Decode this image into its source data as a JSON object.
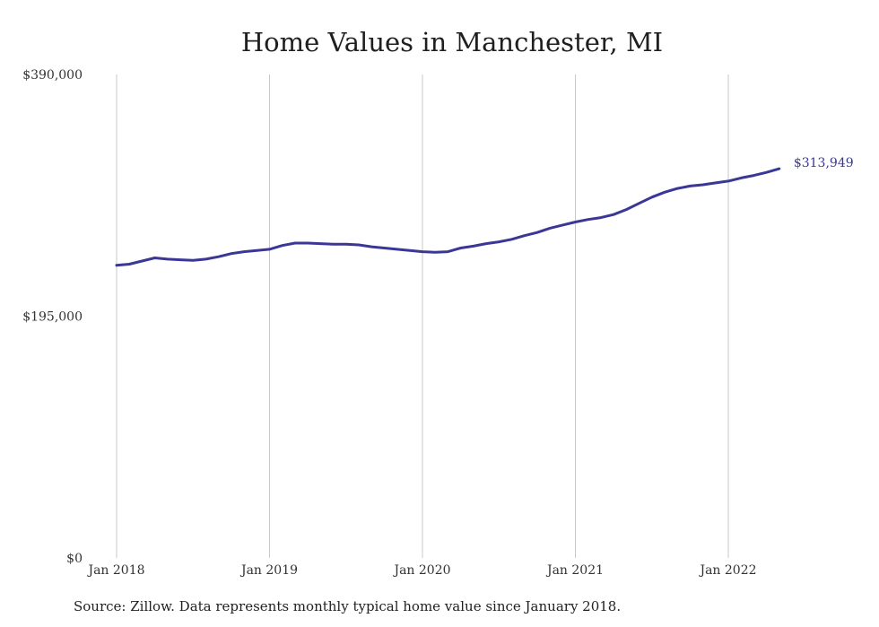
{
  "chart_data": {
    "type": "line",
    "title": "Home Values in Manchester, MI",
    "xlabel": "",
    "ylabel": "",
    "ylim": [
      0,
      390000
    ],
    "y_ticks": [
      0,
      195000,
      390000
    ],
    "y_tick_labels": [
      "$0",
      "$195,000",
      "$390,000"
    ],
    "x_ticks": [
      "Jan 2018",
      "Jan 2019",
      "Jan 2020",
      "Jan 2021",
      "Jan 2022"
    ],
    "grid": "vertical",
    "line_color": "#3a3796",
    "end_label": "$313,949",
    "series": [
      {
        "x": [
          "2018-01",
          "2018-02",
          "2018-03",
          "2018-04",
          "2018-05",
          "2018-06",
          "2018-07",
          "2018-08",
          "2018-09",
          "2018-10",
          "2018-11",
          "2018-12",
          "2019-01",
          "2019-02",
          "2019-03",
          "2019-04",
          "2019-05",
          "2019-06",
          "2019-07",
          "2019-08",
          "2019-09",
          "2019-10",
          "2019-11",
          "2019-12",
          "2020-01",
          "2020-02",
          "2020-03",
          "2020-04",
          "2020-05",
          "2020-06",
          "2020-07",
          "2020-08",
          "2020-09",
          "2020-10",
          "2020-11",
          "2020-12",
          "2021-01",
          "2021-02",
          "2021-03",
          "2021-04",
          "2021-05",
          "2021-06",
          "2021-07",
          "2021-08",
          "2021-09",
          "2021-10",
          "2021-11",
          "2021-12",
          "2022-01",
          "2022-02",
          "2022-03",
          "2022-04",
          "2022-05"
        ],
        "values": [
          236000,
          237000,
          239500,
          242000,
          241000,
          240500,
          240000,
          241000,
          243000,
          245500,
          247000,
          248000,
          249000,
          252000,
          254000,
          254000,
          253500,
          253000,
          253000,
          252500,
          251000,
          250000,
          249000,
          248000,
          247000,
          246500,
          247000,
          250000,
          251500,
          253500,
          255000,
          257000,
          260000,
          262500,
          266000,
          268500,
          271000,
          273000,
          274500,
          277000,
          281000,
          286000,
          291000,
          295000,
          298000,
          300000,
          301000,
          302500,
          304000,
          306500,
          308500,
          311000,
          313949
        ]
      }
    ]
  },
  "footer": {
    "source": "Source: Zillow. Data represents monthly typical home value since January 2018."
  }
}
